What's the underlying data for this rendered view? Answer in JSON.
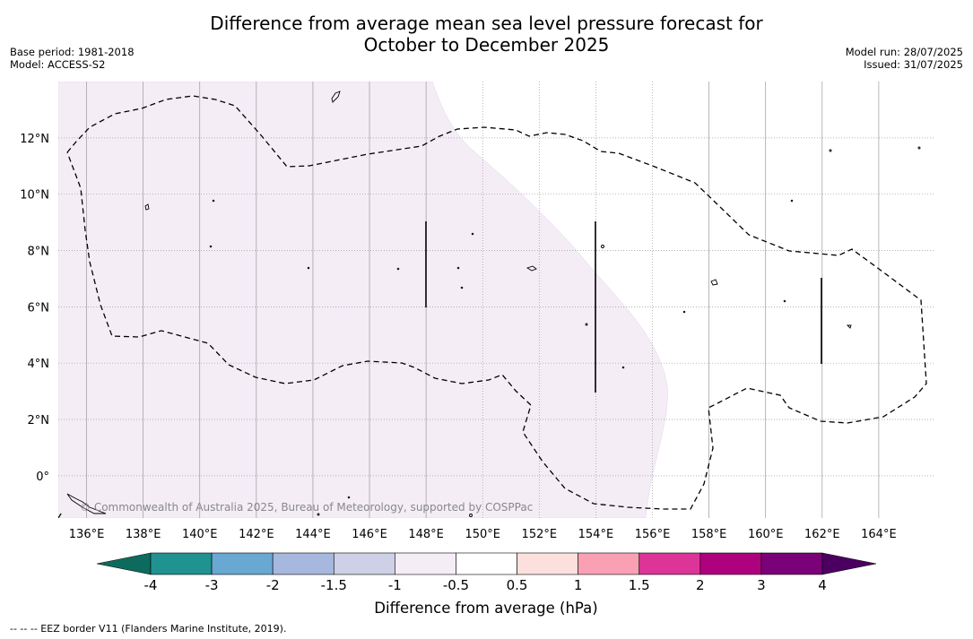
{
  "title": {
    "line1": "Difference from average mean sea level pressure forecast for",
    "line2": "October to December 2025"
  },
  "meta": {
    "base_period": "Base period: 1981-2018",
    "model": "Model: ACCESS-S2",
    "model_run": "Model run: 28/07/2025",
    "issued": "Issued: 31/07/2025"
  },
  "map": {
    "lon_range": [
      135,
      166
    ],
    "lat_range": [
      -1.5,
      14
    ],
    "lon_ticks": [
      {
        "value": 136,
        "label": "136°E"
      },
      {
        "value": 138,
        "label": "138°E"
      },
      {
        "value": 140,
        "label": "140°E"
      },
      {
        "value": 142,
        "label": "142°E"
      },
      {
        "value": 144,
        "label": "144°E"
      },
      {
        "value": 146,
        "label": "146°E"
      },
      {
        "value": 148,
        "label": "148°E"
      },
      {
        "value": 150,
        "label": "150°E"
      },
      {
        "value": 152,
        "label": "152°E"
      },
      {
        "value": 154,
        "label": "154°E"
      },
      {
        "value": 156,
        "label": "156°E"
      },
      {
        "value": 158,
        "label": "158°E"
      },
      {
        "value": 160,
        "label": "160°E"
      },
      {
        "value": 162,
        "label": "162°E"
      },
      {
        "value": 164,
        "label": "164°E"
      }
    ],
    "lat_ticks": [
      {
        "value": 12,
        "label": "12°N"
      },
      {
        "value": 10,
        "label": "10°N"
      },
      {
        "value": 8,
        "label": "8°N"
      },
      {
        "value": 6,
        "label": "6°N"
      },
      {
        "value": 4,
        "label": "4°N"
      },
      {
        "value": 2,
        "label": "2°N"
      },
      {
        "value": 0,
        "label": "0°"
      }
    ],
    "anomaly_fill": {
      "color": "#f4edf6",
      "category": "-1 to -0.5 hPa"
    },
    "copyright": "© Commonwealth of Australia 2025, Bureau of Meteorology, supported by COSPPac"
  },
  "colorbar": {
    "title": "Difference from average (hPa)",
    "under_color": "#0d6b5e",
    "over_color": "#4b0061",
    "bins": [
      {
        "color": "#20928f"
      },
      {
        "color": "#68a8d2"
      },
      {
        "color": "#a6b8dd"
      },
      {
        "color": "#cdd0e6"
      },
      {
        "color": "#f4edf6"
      },
      {
        "color": "#ffffff"
      },
      {
        "color": "#fde0dd"
      },
      {
        "color": "#f9a0b5"
      },
      {
        "color": "#dd3497"
      },
      {
        "color": "#ae017e"
      },
      {
        "color": "#7a0177"
      }
    ],
    "tick_labels": [
      "-4",
      "-3",
      "-2",
      "-1.5",
      "-1",
      "-0.5",
      "0.5",
      "1",
      "1.5",
      "2",
      "3",
      "4"
    ]
  },
  "footnote": "-- -- -- EEZ border V11 (Flanders Marine Institute, 2019)."
}
